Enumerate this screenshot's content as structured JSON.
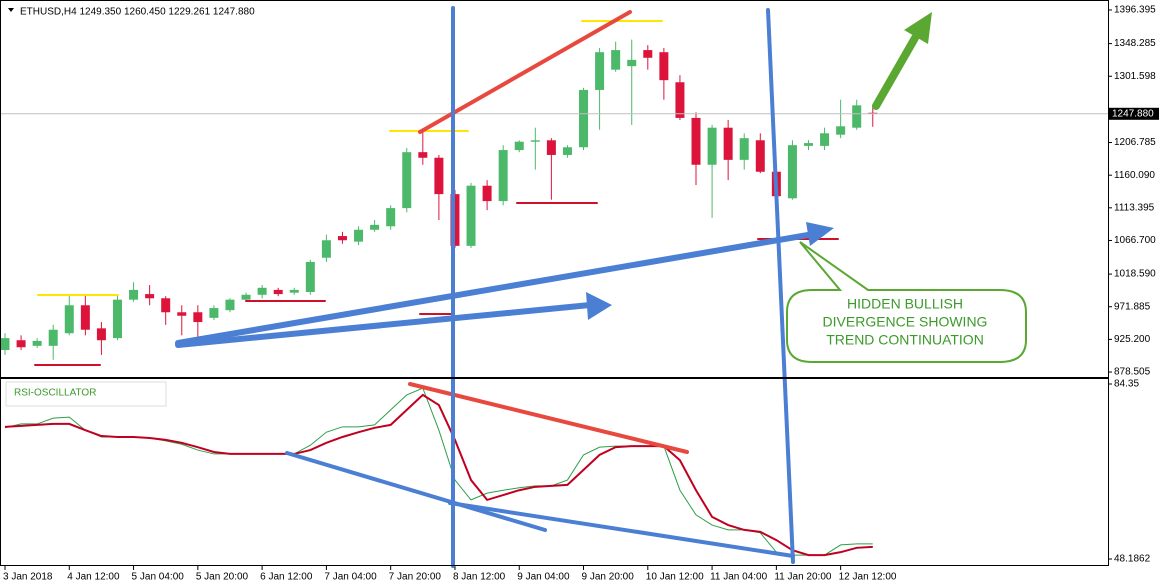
{
  "chart_data": [
    {
      "type": "candlestick",
      "title": "ETHUSD,H4  1249.350 1260.450 1229.261 1247.880",
      "open": [
        910,
        924,
        916,
        916,
        934,
        974,
        941,
        927,
        982,
        990,
        984,
        964,
        964,
        956,
        967,
        982,
        989,
        996,
        992,
        993,
        1042,
        1073,
        1065,
        1082,
        1087,
        1113,
        1193,
        1185,
        1133,
        1059,
        1145,
        1123,
        1196,
        1208,
        1210,
        1189,
        1200,
        1282,
        1311,
        1316,
        1339,
        1336,
        1293,
        1242,
        1175,
        1228,
        1182,
        1210,
        1165,
        1127,
        1202,
        1202,
        1218,
        1228,
        1249.35
      ],
      "high": [
        934,
        931,
        927,
        946,
        989,
        989,
        950,
        989,
        1007,
        1003,
        987,
        974,
        974,
        974,
        984,
        992,
        1003,
        999,
        999,
        1039,
        1075,
        1079,
        1087,
        1096,
        1117,
        1199,
        1225,
        1189,
        1139,
        1149,
        1153,
        1203,
        1210,
        1228,
        1213,
        1203,
        1285,
        1342,
        1351,
        1354,
        1346,
        1342,
        1303,
        1250,
        1232,
        1239,
        1220,
        1220,
        1170,
        1210,
        1210,
        1228,
        1268,
        1268,
        1260.45
      ],
      "low": [
        903,
        910,
        913,
        896,
        931,
        931,
        903,
        924,
        979,
        974,
        946,
        931,
        917,
        953,
        964,
        979,
        984,
        987,
        989,
        989,
        1036,
        1062,
        1060,
        1079,
        1082,
        1107,
        1175,
        1096,
        1056,
        1056,
        1110,
        1117,
        1193,
        1168,
        1125,
        1185,
        1196,
        1225,
        1308,
        1232,
        1311,
        1268,
        1239,
        1146,
        1099,
        1153,
        1168,
        1163,
        1099,
        1125,
        1196,
        1196,
        1213,
        1225,
        1229.261
      ],
      "close": [
        927,
        914,
        923,
        939,
        974,
        939,
        924,
        982,
        996,
        984,
        964,
        959,
        950,
        970,
        982,
        989,
        999,
        990,
        996,
        1036,
        1067,
        1067,
        1082,
        1089,
        1113,
        1193,
        1185,
        1133,
        1059,
        1145,
        1123,
        1196,
        1208,
        1210,
        1189,
        1200,
        1282,
        1336,
        1339,
        1325,
        1328,
        1296,
        1242,
        1175,
        1228,
        1182,
        1213,
        1165,
        1130,
        1203,
        1206,
        1220,
        1230,
        1260,
        1247.88
      ],
      "up_color": "#4cb86a",
      "down_color": "#dc143c",
      "ylim": [
        871.4,
        1403.5
      ],
      "yticks": [
        878.505,
        {
          "value": 925.2,
          "label": "925.200"
        },
        971.885,
        {
          "value": 1018.59,
          "label": "1018.590"
        },
        {
          "value": 1066.7,
          "label": "1066.700"
        },
        1113.395,
        {
          "value": 1160.09,
          "label": "1160.090"
        },
        1206.785,
        1301.598,
        1348.285,
        1396.395
      ],
      "last_price": {
        "value": 1247.88,
        "label": "1247.880"
      },
      "annotation": [
        "HIDDEN BULLISH",
        "DIVERGENCE SHOWING",
        "TREND CONTINUATION"
      ]
    },
    {
      "type": "line",
      "title": "RSI-OSCILLATOR",
      "categories": [
        "3 Jan 2018",
        null,
        null,
        null,
        "4 Jan 12:00",
        null,
        null,
        null,
        "5 Jan 04:00",
        null,
        null,
        null,
        "5 Jan 20:00",
        null,
        null,
        null,
        "6 Jan 12:00",
        null,
        null,
        null,
        "7 Jan 04:00",
        null,
        null,
        null,
        "7 Jan 20:00",
        null,
        null,
        null,
        "8 Jan 12:00",
        null,
        null,
        null,
        "9 Jan 04:00",
        null,
        null,
        null,
        "9 Jan 20:00",
        null,
        null,
        null,
        "10 Jan 12:00",
        null,
        null,
        null,
        "11 Jan 04:00",
        null,
        null,
        null,
        "11 Jan 20:00",
        null,
        null,
        null,
        "12 Jan 12:00",
        null,
        null
      ],
      "series": [
        {
          "color": "#2e9e4a",
          "values": [
            75.3,
            76.1,
            76.1,
            77.3,
            77.5,
            74.8,
            73.4,
            73.4,
            73.4,
            73.2,
            72.6,
            71.9,
            70.7,
            69.9,
            69.9,
            69.9,
            69.9,
            69.9,
            69.9,
            71.7,
            74.4,
            75.5,
            75.5,
            75.9,
            79.0,
            82.1,
            83.5,
            74.8,
            64.5,
            60.4,
            61.8,
            62.4,
            62.9,
            63.3,
            63.3,
            64.5,
            69.7,
            71.3,
            71.5,
            71.5,
            71.5,
            71.5,
            62.4,
            57.3,
            55.2,
            54.2,
            54.2,
            53.6,
            49.6,
            49.0,
            49.0,
            49.0,
            51.1,
            51.3,
            51.3
          ]
        },
        {
          "color": "#c00020",
          "values": [
            75.5,
            75.7,
            75.9,
            76.1,
            76.1,
            74.8,
            73.6,
            73.4,
            73.4,
            73.2,
            72.8,
            72.2,
            71.3,
            70.3,
            69.9,
            69.9,
            69.9,
            69.9,
            69.9,
            70.7,
            72.2,
            73.4,
            74.4,
            75.3,
            75.9,
            79.0,
            82.1,
            80.0,
            72.8,
            64.5,
            60.4,
            61.4,
            62.4,
            63.1,
            63.3,
            63.5,
            66.6,
            69.7,
            71.3,
            71.5,
            71.5,
            71.5,
            68.6,
            62.4,
            56.9,
            55.2,
            54.2,
            53.8,
            52.1,
            50.0,
            49.0,
            49.0,
            49.6,
            50.5,
            50.7
          ]
        }
      ],
      "ylim": [
        46.74,
        85.59
      ],
      "yticks": [
        48.1862,
        84.35
      ]
    }
  ]
}
